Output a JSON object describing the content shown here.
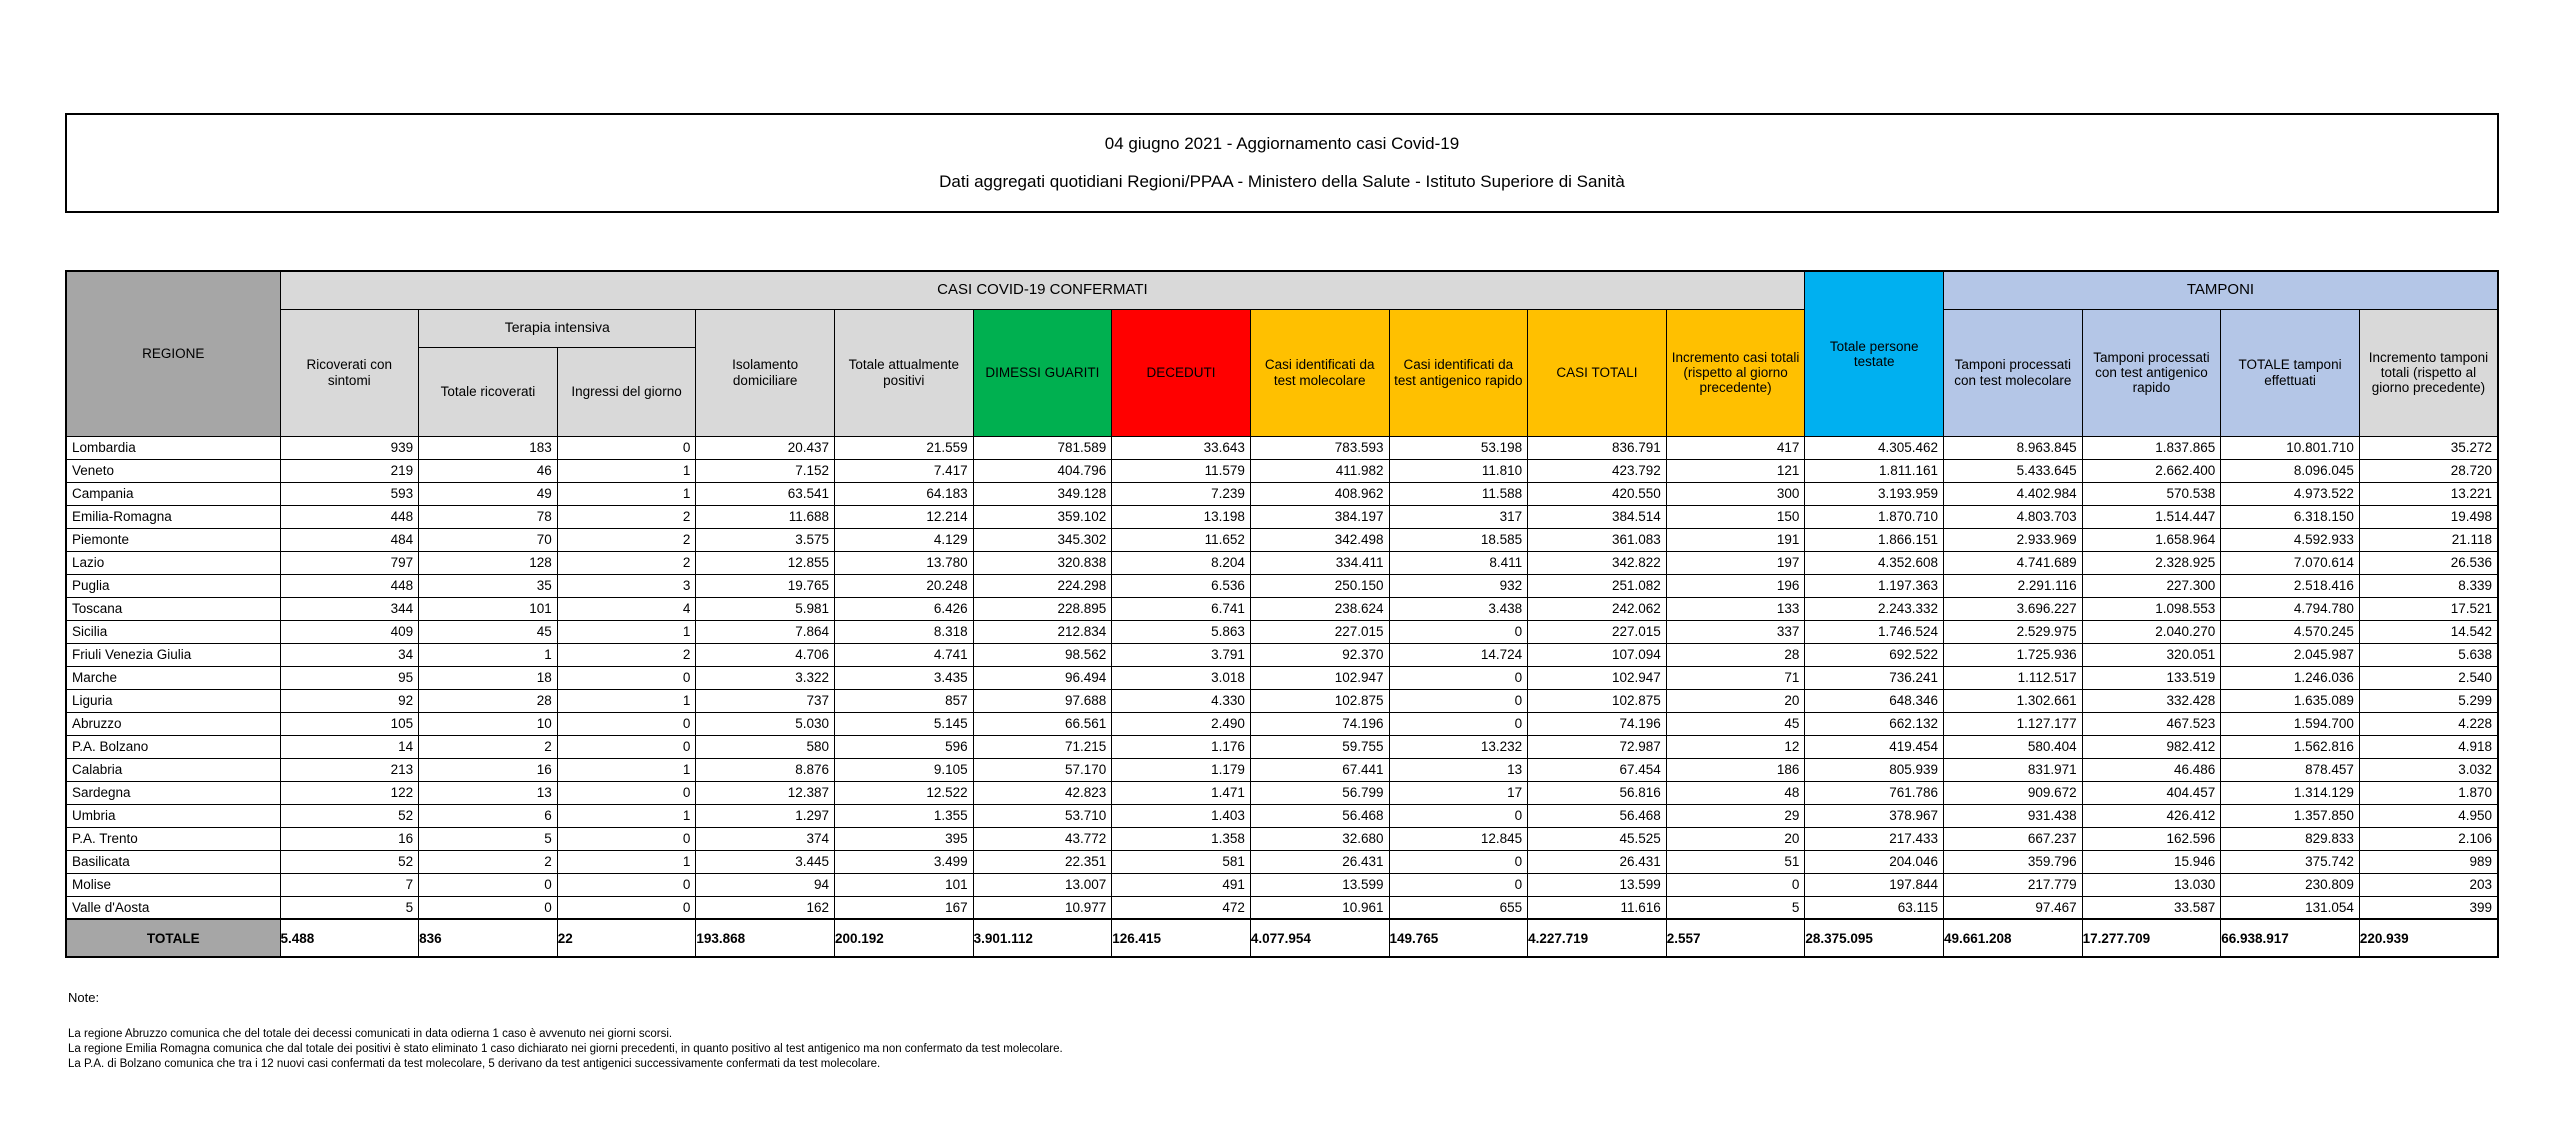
{
  "title": {
    "line1": "04 giugno 2021 - Aggiornamento casi Covid-19",
    "line2": "Dati aggregati quotidiani Regioni/PPAA - Ministero della Salute - Istituto Superiore di Sanità"
  },
  "colors": {
    "green": "#00b050",
    "red": "#ff0000",
    "amber": "#ffc000",
    "cyan": "#00b0f0",
    "light_blue": "#b4c6e7",
    "light_gray": "#d9d9d9",
    "mid_gray": "#bfbfbf",
    "dark_gray": "#a6a6a6"
  },
  "table": {
    "headers": {
      "regione": "REGIONE",
      "casi_confermati_band": "CASI COVID-19 CONFERMATI",
      "terapia_intensiva_band": "Terapia intensiva",
      "tamponi_band": "TAMPONI",
      "totale_persone_testate": "Totale persone testate",
      "col_ricoverati": "Ricoverati con sintomi",
      "col_totale_ricoverati": "Totale ricoverati",
      "col_ingressi": "Ingressi del giorno",
      "col_isolamento": "Isolamento domiciliare",
      "col_attualmente_positivi": "Totale attualmente positivi",
      "col_dimessi": "DIMESSI GUARITI",
      "col_deceduti": "DECEDUTI",
      "col_casi_molecolare": "Casi identificati da test molecolare",
      "col_casi_antigenico": "Casi identificati da test antigenico rapido",
      "col_casi_totali": "CASI TOTALI",
      "col_incremento_casi": "Incremento casi totali (rispetto al giorno precedente)",
      "col_tamponi_molecolare": "Tamponi processati con test molecolare",
      "col_tamponi_antigenico": "Tamponi processati con test antigenico rapido",
      "col_totale_tamponi": "TOTALE tamponi effettuati",
      "col_incremento_tamponi": "Incremento tamponi totali (rispetto al giorno precedente)"
    },
    "rows": [
      {
        "region": "Lombardia",
        "values": [
          "939",
          "183",
          "0",
          "20.437",
          "21.559",
          "781.589",
          "33.643",
          "783.593",
          "53.198",
          "836.791",
          "417",
          "4.305.462",
          "8.963.845",
          "1.837.865",
          "10.801.710",
          "35.272"
        ]
      },
      {
        "region": "Veneto",
        "values": [
          "219",
          "46",
          "1",
          "7.152",
          "7.417",
          "404.796",
          "11.579",
          "411.982",
          "11.810",
          "423.792",
          "121",
          "1.811.161",
          "5.433.645",
          "2.662.400",
          "8.096.045",
          "28.720"
        ]
      },
      {
        "region": "Campania",
        "values": [
          "593",
          "49",
          "1",
          "63.541",
          "64.183",
          "349.128",
          "7.239",
          "408.962",
          "11.588",
          "420.550",
          "300",
          "3.193.959",
          "4.402.984",
          "570.538",
          "4.973.522",
          "13.221"
        ]
      },
      {
        "region": "Emilia-Romagna",
        "values": [
          "448",
          "78",
          "2",
          "11.688",
          "12.214",
          "359.102",
          "13.198",
          "384.197",
          "317",
          "384.514",
          "150",
          "1.870.710",
          "4.803.703",
          "1.514.447",
          "6.318.150",
          "19.498"
        ]
      },
      {
        "region": "Piemonte",
        "values": [
          "484",
          "70",
          "2",
          "3.575",
          "4.129",
          "345.302",
          "11.652",
          "342.498",
          "18.585",
          "361.083",
          "191",
          "1.866.151",
          "2.933.969",
          "1.658.964",
          "4.592.933",
          "21.118"
        ]
      },
      {
        "region": "Lazio",
        "values": [
          "797",
          "128",
          "2",
          "12.855",
          "13.780",
          "320.838",
          "8.204",
          "334.411",
          "8.411",
          "342.822",
          "197",
          "4.352.608",
          "4.741.689",
          "2.328.925",
          "7.070.614",
          "26.536"
        ]
      },
      {
        "region": "Puglia",
        "values": [
          "448",
          "35",
          "3",
          "19.765",
          "20.248",
          "224.298",
          "6.536",
          "250.150",
          "932",
          "251.082",
          "196",
          "1.197.363",
          "2.291.116",
          "227.300",
          "2.518.416",
          "8.339"
        ]
      },
      {
        "region": "Toscana",
        "values": [
          "344",
          "101",
          "4",
          "5.981",
          "6.426",
          "228.895",
          "6.741",
          "238.624",
          "3.438",
          "242.062",
          "133",
          "2.243.332",
          "3.696.227",
          "1.098.553",
          "4.794.780",
          "17.521"
        ]
      },
      {
        "region": "Sicilia",
        "values": [
          "409",
          "45",
          "1",
          "7.864",
          "8.318",
          "212.834",
          "5.863",
          "227.015",
          "0",
          "227.015",
          "337",
          "1.746.524",
          "2.529.975",
          "2.040.270",
          "4.570.245",
          "14.542"
        ]
      },
      {
        "region": "Friuli Venezia Giulia",
        "values": [
          "34",
          "1",
          "2",
          "4.706",
          "4.741",
          "98.562",
          "3.791",
          "92.370",
          "14.724",
          "107.094",
          "28",
          "692.522",
          "1.725.936",
          "320.051",
          "2.045.987",
          "5.638"
        ]
      },
      {
        "region": "Marche",
        "values": [
          "95",
          "18",
          "0",
          "3.322",
          "3.435",
          "96.494",
          "3.018",
          "102.947",
          "0",
          "102.947",
          "71",
          "736.241",
          "1.112.517",
          "133.519",
          "1.246.036",
          "2.540"
        ]
      },
      {
        "region": "Liguria",
        "values": [
          "92",
          "28",
          "1",
          "737",
          "857",
          "97.688",
          "4.330",
          "102.875",
          "0",
          "102.875",
          "20",
          "648.346",
          "1.302.661",
          "332.428",
          "1.635.089",
          "5.299"
        ]
      },
      {
        "region": "Abruzzo",
        "values": [
          "105",
          "10",
          "0",
          "5.030",
          "5.145",
          "66.561",
          "2.490",
          "74.196",
          "0",
          "74.196",
          "45",
          "662.132",
          "1.127.177",
          "467.523",
          "1.594.700",
          "4.228"
        ]
      },
      {
        "region": "P.A. Bolzano",
        "values": [
          "14",
          "2",
          "0",
          "580",
          "596",
          "71.215",
          "1.176",
          "59.755",
          "13.232",
          "72.987",
          "12",
          "419.454",
          "580.404",
          "982.412",
          "1.562.816",
          "4.918"
        ]
      },
      {
        "region": "Calabria",
        "values": [
          "213",
          "16",
          "1",
          "8.876",
          "9.105",
          "57.170",
          "1.179",
          "67.441",
          "13",
          "67.454",
          "186",
          "805.939",
          "831.971",
          "46.486",
          "878.457",
          "3.032"
        ]
      },
      {
        "region": "Sardegna",
        "values": [
          "122",
          "13",
          "0",
          "12.387",
          "12.522",
          "42.823",
          "1.471",
          "56.799",
          "17",
          "56.816",
          "48",
          "761.786",
          "909.672",
          "404.457",
          "1.314.129",
          "1.870"
        ]
      },
      {
        "region": "Umbria",
        "values": [
          "52",
          "6",
          "1",
          "1.297",
          "1.355",
          "53.710",
          "1.403",
          "56.468",
          "0",
          "56.468",
          "29",
          "378.967",
          "931.438",
          "426.412",
          "1.357.850",
          "4.950"
        ]
      },
      {
        "region": "P.A. Trento",
        "values": [
          "16",
          "5",
          "0",
          "374",
          "395",
          "43.772",
          "1.358",
          "32.680",
          "12.845",
          "45.525",
          "20",
          "217.433",
          "667.237",
          "162.596",
          "829.833",
          "2.106"
        ]
      },
      {
        "region": "Basilicata",
        "values": [
          "52",
          "2",
          "1",
          "3.445",
          "3.499",
          "22.351",
          "581",
          "26.431",
          "0",
          "26.431",
          "51",
          "204.046",
          "359.796",
          "15.946",
          "375.742",
          "989"
        ]
      },
      {
        "region": "Molise",
        "values": [
          "7",
          "0",
          "0",
          "94",
          "101",
          "13.007",
          "491",
          "13.599",
          "0",
          "13.599",
          "0",
          "197.844",
          "217.779",
          "13.030",
          "230.809",
          "203"
        ]
      },
      {
        "region": "Valle d'Aosta",
        "values": [
          "5",
          "0",
          "0",
          "162",
          "167",
          "10.977",
          "472",
          "10.961",
          "655",
          "11.616",
          "5",
          "63.115",
          "97.467",
          "33.587",
          "131.054",
          "399"
        ]
      }
    ],
    "total_row": {
      "label": "TOTALE",
      "values": [
        "5.488",
        "836",
        "22",
        "193.868",
        "200.192",
        "3.901.112",
        "126.415",
        "4.077.954",
        "149.765",
        "4.227.719",
        "2.557",
        "28.375.095",
        "49.661.208",
        "17.277.709",
        "66.938.917",
        "220.939"
      ]
    }
  },
  "notes": {
    "title": "Note:",
    "lines": [
      "La regione Abruzzo comunica che del totale dei decessi comunicati in data odierna 1 caso è avvenuto nei giorni scorsi.",
      "La regione Emilia Romagna comunica che dal totale dei positivi è stato eliminato 1 caso dichiarato nei giorni precedenti, in quanto positivo al test antigenico ma non confermato da test molecolare.",
      "La P.A. di Bolzano comunica che tra i 12 nuovi casi confermati da test molecolare, 5 derivano da test antigenici successivamente confermati da test molecolare."
    ]
  }
}
